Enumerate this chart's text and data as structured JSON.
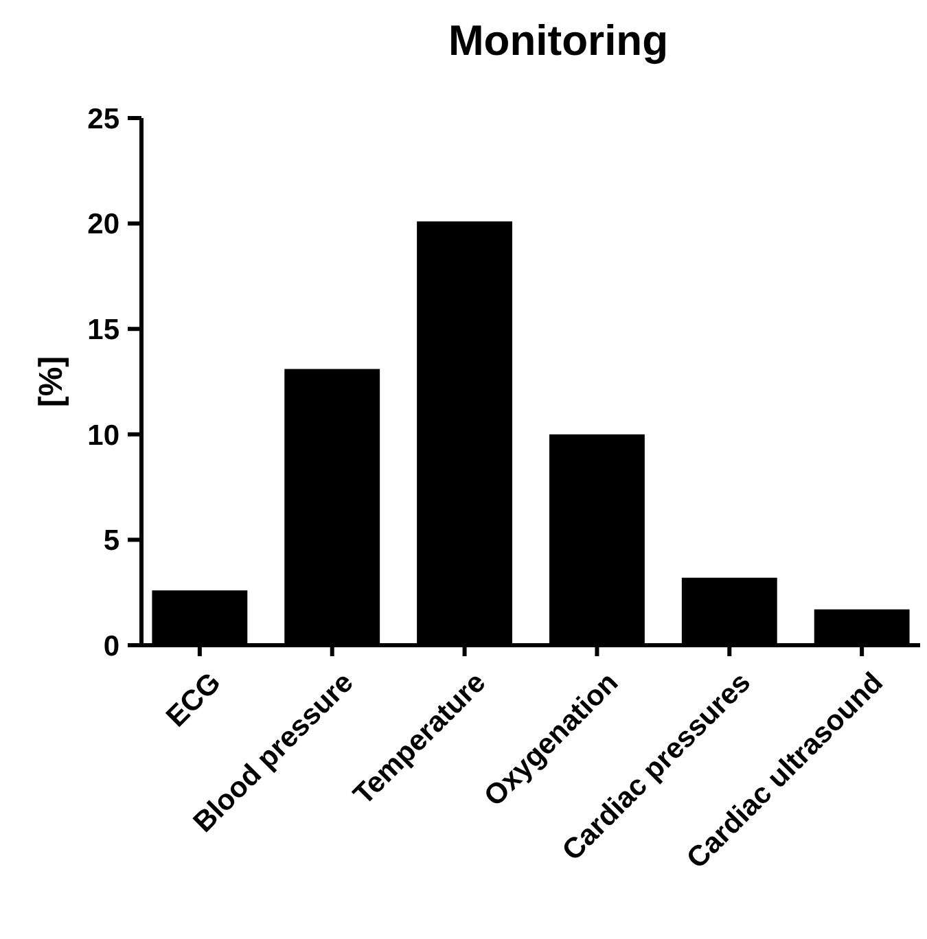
{
  "chart_data": {
    "type": "bar",
    "title": "Monitoring",
    "ylabel": "[%]",
    "categories": [
      "ECG",
      "Blood pressure",
      "Temperature",
      "Oxygenation",
      "Cardiac pressures",
      "Cardiac ultrasound"
    ],
    "values": [
      2.6,
      13.1,
      20.1,
      10.0,
      3.2,
      1.7
    ],
    "color": "#000000",
    "ylim": [
      0,
      25
    ],
    "yticks": [
      0,
      5,
      10,
      15,
      20,
      25
    ],
    "grid": false
  }
}
